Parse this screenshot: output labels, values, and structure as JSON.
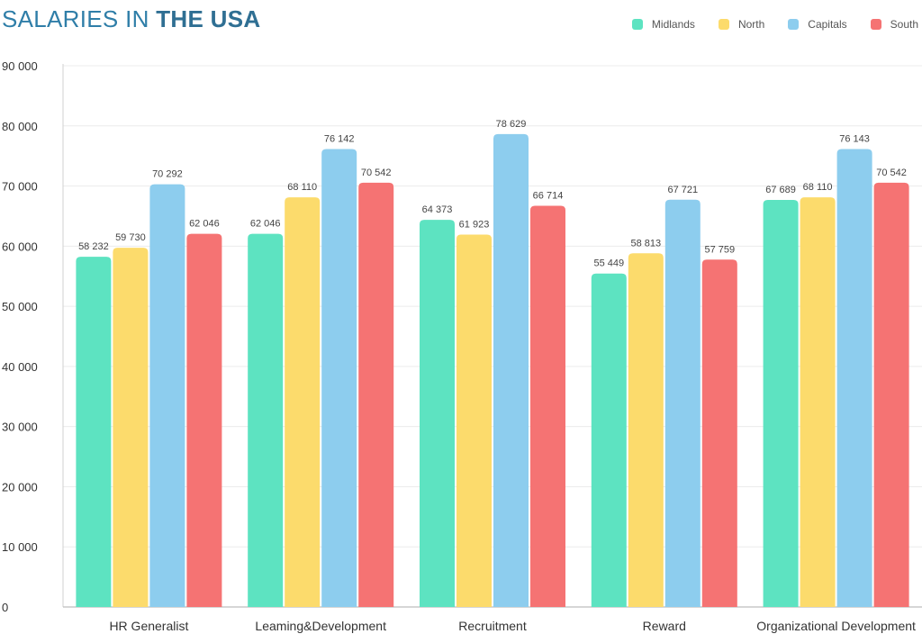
{
  "title": {
    "part1": "SALARIES IN ",
    "part2": "THE USA"
  },
  "colors": {
    "Midlands": "#5de3c1",
    "North": "#fcdb6c",
    "Capitals": "#8dcdee",
    "South": "#f57373"
  },
  "chart_data": {
    "type": "bar",
    "title": "SALARIES IN THE USA",
    "categories": [
      "HR Generalist",
      "Leaming&Development",
      "Recruitment",
      "Reward",
      "Organizational Development"
    ],
    "series": [
      {
        "name": "Midlands",
        "values": [
          58232,
          62046,
          64373,
          55449,
          67689
        ],
        "labels": [
          "58 232",
          "62 046",
          "64 373",
          "55 449",
          "67 689"
        ]
      },
      {
        "name": "North",
        "values": [
          59730,
          68110,
          61923,
          58813,
          68110
        ],
        "labels": [
          "59 730",
          "68 110",
          "61 923",
          "58 813",
          "68 110"
        ]
      },
      {
        "name": "Capitals",
        "values": [
          70292,
          76142,
          78629,
          67721,
          76143
        ],
        "labels": [
          "70 292",
          "76 142",
          "78 629",
          "67 721",
          "76 143"
        ]
      },
      {
        "name": "South",
        "values": [
          62046,
          70542,
          66714,
          57759,
          70542
        ],
        "labels": [
          "62 046",
          "70 542",
          "66 714",
          "57 759",
          "70 542"
        ]
      }
    ],
    "ylim": [
      0,
      90000
    ],
    "yticks": [
      "0",
      "10 000",
      "20 000",
      "30 000",
      "40 000",
      "50 000",
      "60 000",
      "70 000",
      "80 000",
      "90 000"
    ],
    "grid": true,
    "legend": "top-right",
    "xlabel": "",
    "ylabel": ""
  }
}
